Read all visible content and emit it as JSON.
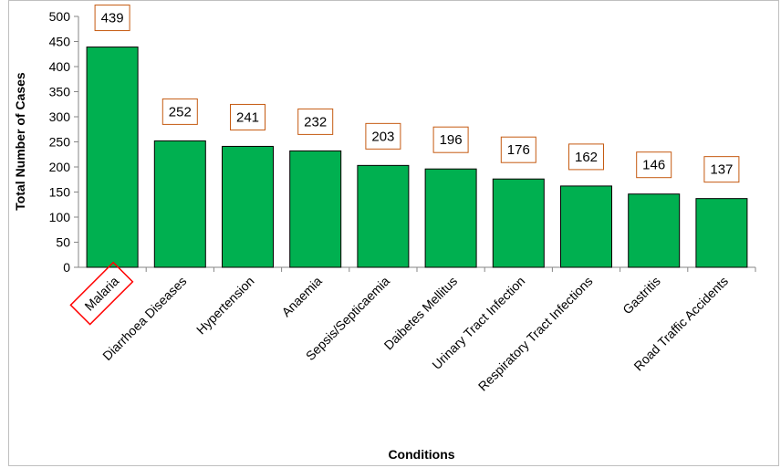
{
  "chart_data": {
    "type": "bar",
    "categories": [
      "Malaria",
      "Diarrhoea Diseases",
      "Hypertension",
      "Anaemia",
      "Sepsis/Septicaemia",
      "Daibetes Mellitus",
      "Urinary Tract Infection",
      "Respiratory Tract Infections",
      "Gastritis",
      "Road Traffic Accidents"
    ],
    "values": [
      439,
      252,
      241,
      232,
      203,
      196,
      176,
      162,
      146,
      137
    ],
    "data_labels": [
      "439",
      "252",
      "241",
      "232",
      "203",
      "196",
      "176",
      "162",
      "146",
      "137"
    ],
    "xlabel": "Conditions",
    "ylabel": "Total Number of Cases",
    "ylim": [
      0,
      500
    ],
    "yticks": [
      0,
      50,
      100,
      150,
      200,
      250,
      300,
      350,
      400,
      450,
      500
    ],
    "grid": false,
    "legend": "none",
    "highlighted_category": "Malaria",
    "colors": {
      "bar_fill": "#00b050",
      "bar_stroke": "#000000",
      "label_box_stroke": "#c55a11",
      "highlight_box_stroke": "#ff0000"
    }
  }
}
